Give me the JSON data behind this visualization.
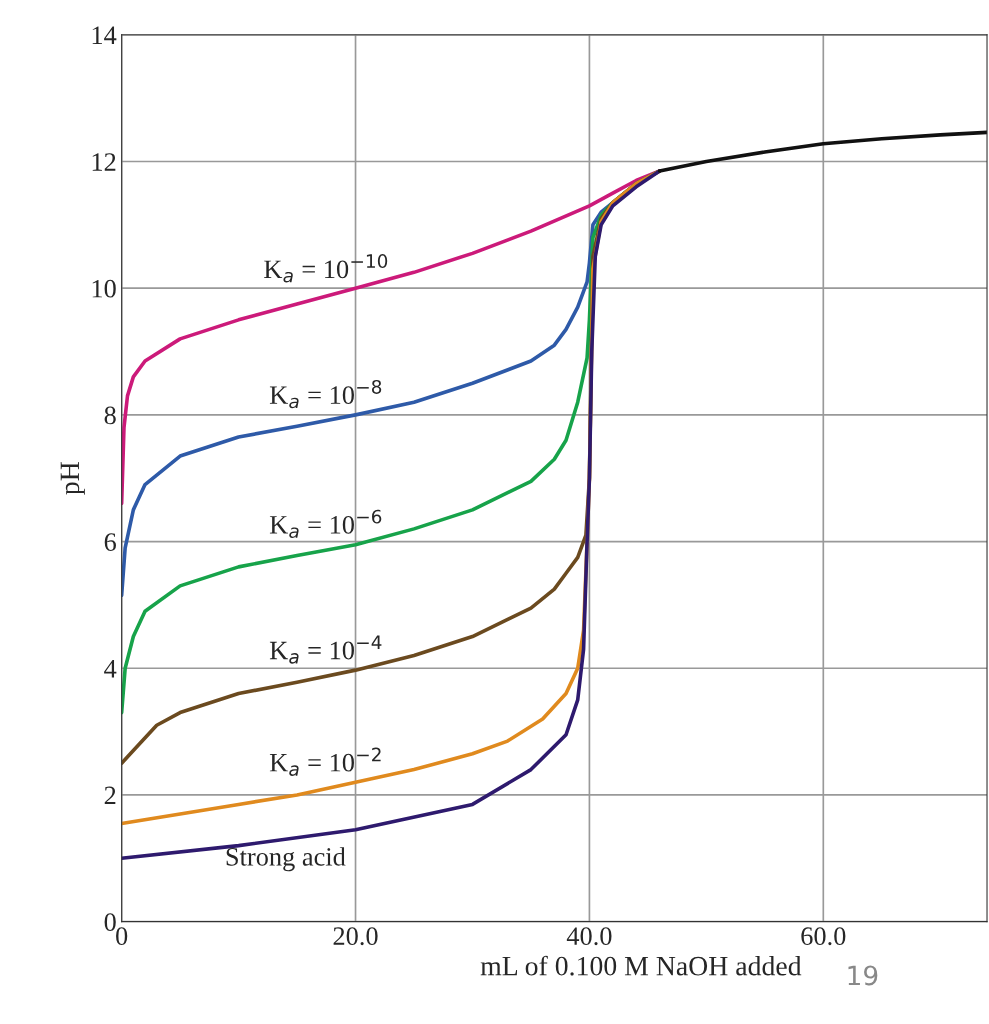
{
  "chart_data": {
    "type": "line",
    "xlabel": "mL of 0.100 M NaOH added",
    "ylabel": "pH",
    "xlim": [
      0,
      74
    ],
    "ylim": [
      0,
      14
    ],
    "xticks": [
      0,
      {
        "value": 20,
        "label": "20.0"
      },
      {
        "value": 40,
        "label": "40.0"
      },
      {
        "value": 60,
        "label": "60.0"
      }
    ],
    "yticks": [
      0,
      2,
      4,
      6,
      8,
      10,
      12,
      14
    ],
    "grid": true,
    "marker": "none",
    "line_style": "solid",
    "annotations": [
      "19"
    ],
    "series": [
      {
        "name": "K$_{a}$ = 10$^{−10}$",
        "color": "#cc1a7a",
        "x": [
          0,
          0.2,
          0.5,
          1,
          2,
          5,
          10,
          15,
          20,
          25,
          30,
          35,
          40,
          42,
          44,
          46
        ],
        "values": [
          6.6,
          7.8,
          8.3,
          8.6,
          8.85,
          9.2,
          9.5,
          9.75,
          10.0,
          10.25,
          10.55,
          10.9,
          11.3,
          11.5,
          11.7,
          11.85
        ]
      },
      {
        "name": "K$_{a}$ = 10$^{−8}$",
        "color": "#2e5aa8",
        "x": [
          0,
          0.3,
          1,
          2,
          5,
          10,
          15,
          20,
          25,
          30,
          35,
          37,
          38,
          39,
          39.8,
          40,
          40.3,
          41,
          42,
          44,
          46
        ],
        "values": [
          5.15,
          5.9,
          6.5,
          6.9,
          7.35,
          7.65,
          7.82,
          8.0,
          8.2,
          8.5,
          8.85,
          9.1,
          9.35,
          9.7,
          10.1,
          10.4,
          11.0,
          11.2,
          11.35,
          11.65,
          11.85
        ]
      },
      {
        "name": "K$_{a}$ = 10$^{−6}$",
        "color": "#17a34a",
        "x": [
          0,
          0.3,
          1,
          2,
          5,
          10,
          15,
          20,
          25,
          30,
          35,
          37,
          38,
          39,
          39.8,
          40,
          40.3,
          41,
          42,
          44,
          46
        ],
        "values": [
          3.3,
          4.0,
          4.5,
          4.9,
          5.3,
          5.6,
          5.78,
          5.95,
          6.2,
          6.5,
          6.95,
          7.3,
          7.6,
          8.2,
          8.9,
          9.5,
          10.8,
          11.15,
          11.35,
          11.65,
          11.85
        ]
      },
      {
        "name": "K$_{a}$ = 10$^{−4}$",
        "color": "#6b4a1f",
        "x": [
          0,
          1,
          3,
          5,
          10,
          15,
          20,
          25,
          30,
          35,
          37,
          38,
          39,
          39.7,
          40,
          40.3,
          41,
          42,
          44,
          46
        ],
        "values": [
          2.5,
          2.7,
          3.1,
          3.3,
          3.6,
          3.78,
          3.97,
          4.2,
          4.5,
          4.95,
          5.25,
          5.5,
          5.75,
          6.1,
          7.0,
          10.5,
          11.1,
          11.35,
          11.65,
          11.85
        ]
      },
      {
        "name": "K$_{a}$ = 10$^{−2}$",
        "color": "#e08a1e",
        "x": [
          0,
          5,
          10,
          15,
          20,
          25,
          30,
          33,
          36,
          38,
          39,
          39.5,
          39.8,
          40,
          40.3,
          41,
          42,
          44,
          46
        ],
        "values": [
          1.55,
          1.7,
          1.85,
          2.0,
          2.2,
          2.4,
          2.65,
          2.85,
          3.2,
          3.6,
          4.0,
          4.6,
          6.0,
          7.0,
          10.3,
          11.05,
          11.35,
          11.65,
          11.85
        ]
      },
      {
        "name": "Strong acid",
        "color": "#2e1a6e",
        "x": [
          0,
          10,
          20,
          30,
          35,
          38,
          39,
          39.5,
          39.8,
          40,
          40.2,
          40.5,
          41,
          42,
          44,
          46
        ],
        "values": [
          1.0,
          1.2,
          1.45,
          1.85,
          2.4,
          2.95,
          3.5,
          4.3,
          6.0,
          7.0,
          9.0,
          10.5,
          11.0,
          11.3,
          11.6,
          11.85
        ]
      },
      {
        "color": "#111111",
        "x": [
          46,
          50,
          55,
          60,
          65,
          70,
          74
        ],
        "values": [
          11.85,
          12.0,
          12.15,
          12.28,
          12.36,
          12.42,
          12.46
        ]
      }
    ]
  }
}
